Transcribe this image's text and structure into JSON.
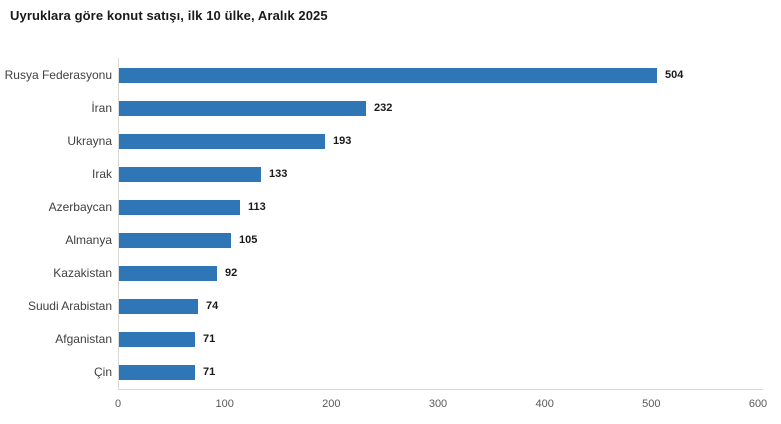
{
  "chart_data": {
    "type": "bar",
    "orientation": "horizontal",
    "title": "Uyruklara göre konut satışı, ilk 10 ülke, Aralık 2025",
    "categories": [
      "Rusya Federasyonu",
      "İran",
      "Ukrayna",
      "Irak",
      "Azerbaycan",
      "Almanya",
      "Kazakistan",
      "Suudi Arabistan",
      "Afganistan",
      "Çin"
    ],
    "values": [
      504,
      232,
      193,
      133,
      113,
      105,
      92,
      74,
      71,
      71
    ],
    "data_labels": [
      "504",
      "232",
      "193",
      "133",
      "113",
      "105",
      "92",
      "74",
      "71",
      "71"
    ],
    "xlabel": "",
    "ylabel": "",
    "xlim": [
      0,
      600
    ],
    "x_ticks": [
      0,
      100,
      200,
      300,
      400,
      500,
      600
    ],
    "grid": false,
    "legend": false,
    "bar_color": "#2e76b5",
    "axis_line_color": "#d9d9d9"
  }
}
